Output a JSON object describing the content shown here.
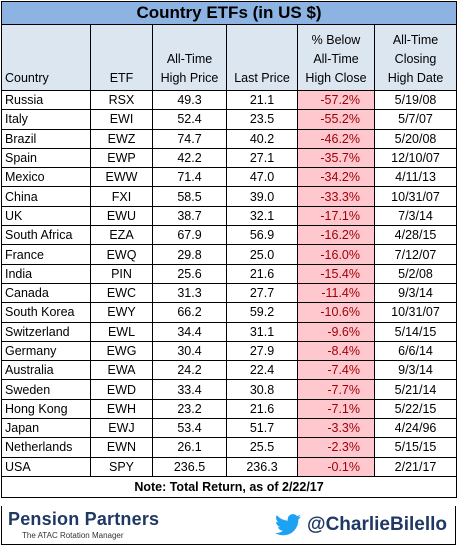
{
  "title": "Country ETFs (in US $)",
  "headers": {
    "country": "Country",
    "etf": "ETF",
    "ath_price": [
      "All-Time",
      "High Price"
    ],
    "last_price": "Last Price",
    "pct_below": [
      "% Below",
      "All-Time",
      "High Close"
    ],
    "ath_date": [
      "All-Time",
      "Closing",
      "High Date"
    ]
  },
  "rows": [
    {
      "country": "Russia",
      "etf": "RSX",
      "ath": "49.3",
      "last": "21.1",
      "pct": "-57.2%",
      "date": "5/19/08"
    },
    {
      "country": "Italy",
      "etf": "EWI",
      "ath": "52.4",
      "last": "23.5",
      "pct": "-55.2%",
      "date": "5/7/07"
    },
    {
      "country": "Brazil",
      "etf": "EWZ",
      "ath": "74.7",
      "last": "40.2",
      "pct": "-46.2%",
      "date": "5/20/08"
    },
    {
      "country": "Spain",
      "etf": "EWP",
      "ath": "42.2",
      "last": "27.1",
      "pct": "-35.7%",
      "date": "12/10/07"
    },
    {
      "country": "Mexico",
      "etf": "EWW",
      "ath": "71.4",
      "last": "47.0",
      "pct": "-34.2%",
      "date": "4/11/13"
    },
    {
      "country": "China",
      "etf": "FXI",
      "ath": "58.5",
      "last": "39.0",
      "pct": "-33.3%",
      "date": "10/31/07"
    },
    {
      "country": "UK",
      "etf": "EWU",
      "ath": "38.7",
      "last": "32.1",
      "pct": "-17.1%",
      "date": "7/3/14"
    },
    {
      "country": "South Africa",
      "etf": "EZA",
      "ath": "67.9",
      "last": "56.9",
      "pct": "-16.2%",
      "date": "4/28/15"
    },
    {
      "country": "France",
      "etf": "EWQ",
      "ath": "29.8",
      "last": "25.0",
      "pct": "-16.0%",
      "date": "7/12/07"
    },
    {
      "country": "India",
      "etf": "PIN",
      "ath": "25.6",
      "last": "21.6",
      "pct": "-15.4%",
      "date": "5/2/08"
    },
    {
      "country": "Canada",
      "etf": "EWC",
      "ath": "31.3",
      "last": "27.7",
      "pct": "-11.4%",
      "date": "9/3/14"
    },
    {
      "country": "South Korea",
      "etf": "EWY",
      "ath": "66.2",
      "last": "59.2",
      "pct": "-10.6%",
      "date": "10/31/07"
    },
    {
      "country": "Switzerland",
      "etf": "EWL",
      "ath": "34.4",
      "last": "31.1",
      "pct": "-9.6%",
      "date": "5/14/15"
    },
    {
      "country": "Germany",
      "etf": "EWG",
      "ath": "30.4",
      "last": "27.9",
      "pct": "-8.4%",
      "date": "6/6/14"
    },
    {
      "country": "Australia",
      "etf": "EWA",
      "ath": "24.2",
      "last": "22.4",
      "pct": "-7.4%",
      "date": "9/3/14"
    },
    {
      "country": "Sweden",
      "etf": "EWD",
      "ath": "33.4",
      "last": "30.8",
      "pct": "-7.7%",
      "date": "5/21/14"
    },
    {
      "country": "Hong Kong",
      "etf": "EWH",
      "ath": "23.2",
      "last": "21.6",
      "pct": "-7.1%",
      "date": "5/22/15"
    },
    {
      "country": "Japan",
      "etf": "EWJ",
      "ath": "53.4",
      "last": "51.7",
      "pct": "-3.3%",
      "date": "4/24/96"
    },
    {
      "country": "Netherlands",
      "etf": "EWN",
      "ath": "26.1",
      "last": "25.5",
      "pct": "-2.3%",
      "date": "5/15/15"
    },
    {
      "country": "USA",
      "etf": "SPY",
      "ath": "236.5",
      "last": "236.3",
      "pct": "-0.1%",
      "date": "2/21/17"
    }
  ],
  "note": "Note: Total Return, as of 2/22/17",
  "footer": {
    "brand": "Pension Partners",
    "tagline": "The ATAC Rotation Manager",
    "handle": "@CharlieBilello",
    "icon": "twitter-bird-icon"
  },
  "colors": {
    "title_bg": "#8db3e2",
    "header_bg": "#dce6f1",
    "negative_bg": "#ffc7ce",
    "negative_text": "#9c0006",
    "brand": "#1f3864",
    "twitter": "#1da1f2"
  }
}
